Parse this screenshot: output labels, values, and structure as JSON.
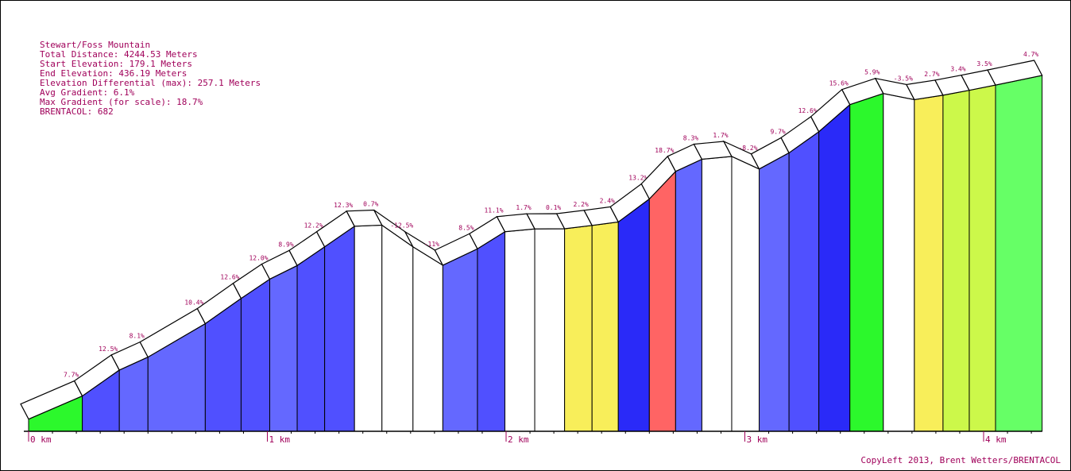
{
  "info": {
    "title": "Stewart/Foss Mountain",
    "total_distance": "Total Distance: 4244.53 Meters",
    "start_elevation": "Start Elevation: 179.1 Meters",
    "end_elevation": "End Elevation: 436.19 Meters",
    "elevation_differential": "Elevation Differential (max): 257.1 Meters",
    "avg_gradient": "Avg Gradient: 6.1%",
    "max_gradient": "Max Gradient (for scale): 18.7%",
    "brentacol": "BRENTACOL: 682"
  },
  "copyleft": "CopyLeft 2013, Brent Wetters/BRENTACOL",
  "chart_data": {
    "type": "area",
    "title": "Stewart/Foss Mountain",
    "xlabel": "",
    "ylabel": "",
    "x_unit": "km",
    "xlim": [
      0,
      4.245
    ],
    "ylim": [
      170,
      445
    ],
    "grid": false,
    "x_ticks": [
      "0 km",
      "1 km",
      "2 km",
      "3 km",
      "4 km"
    ],
    "legend": "none",
    "gradient_colors": {
      "descent_or_flat": "#ffffff",
      "0-2%": "#ffffff",
      "2-5%": "#f8ee5a",
      "3-5%": "#ccf84a",
      "5-8%": "#66ff66",
      "6-8%": "#2cf82c",
      "8-11%": "#6468ff",
      "11-13%": "#5050ff",
      "13-16%": "#2a2af8",
      "16%+": "#ff6464"
    },
    "segments": [
      {
        "start_km": 0.0,
        "end_km": 0.225,
        "gradient": "7.7%",
        "color": "#2cf82c",
        "start_elev": 179.1,
        "end_elev": 196.4
      },
      {
        "start_km": 0.225,
        "end_km": 0.38,
        "gradient": "12.5%",
        "color": "#5050ff",
        "start_elev": 196.4,
        "end_elev": 215.8
      },
      {
        "start_km": 0.38,
        "end_km": 0.5,
        "gradient": "8.1%",
        "color": "#6468ff",
        "start_elev": 215.8,
        "end_elev": 225.5
      },
      {
        "start_km": 0.5,
        "end_km": 0.74,
        "gradient": "10.4%",
        "color": "#6468ff",
        "start_elev": 225.5,
        "end_elev": 250.5
      },
      {
        "start_km": 0.74,
        "end_km": 0.89,
        "gradient": "12.6%",
        "color": "#5050ff",
        "start_elev": 250.5,
        "end_elev": 269.4
      },
      {
        "start_km": 0.89,
        "end_km": 1.01,
        "gradient": "12.0%",
        "color": "#5050ff",
        "start_elev": 269.4,
        "end_elev": 283.8
      },
      {
        "start_km": 1.01,
        "end_km": 1.125,
        "gradient": "8.9%",
        "color": "#6468ff",
        "start_elev": 283.8,
        "end_elev": 294.0
      },
      {
        "start_km": 1.125,
        "end_km": 1.24,
        "gradient": "12.2%",
        "color": "#5050ff",
        "start_elev": 294.0,
        "end_elev": 308.0
      },
      {
        "start_km": 1.24,
        "end_km": 1.365,
        "gradient": "12.3%",
        "color": "#5050ff",
        "start_elev": 308.0,
        "end_elev": 323.4
      },
      {
        "start_km": 1.365,
        "end_km": 1.48,
        "gradient": "0.7%",
        "color": "#ffffff",
        "start_elev": 323.4,
        "end_elev": 324.2
      },
      {
        "start_km": 1.48,
        "end_km": 1.61,
        "gradient": "-12.5%",
        "color": "#ffffff",
        "start_elev": 324.2,
        "end_elev": 308.0
      },
      {
        "start_km": 1.61,
        "end_km": 1.735,
        "gradient": "-11%",
        "color": "#ffffff",
        "start_elev": 308.0,
        "end_elev": 294.2
      },
      {
        "start_km": 1.735,
        "end_km": 1.88,
        "gradient": "8.5%",
        "color": "#6468ff",
        "start_elev": 294.2,
        "end_elev": 306.5
      },
      {
        "start_km": 1.88,
        "end_km": 1.995,
        "gradient": "11.1%",
        "color": "#5050ff",
        "start_elev": 306.5,
        "end_elev": 319.3
      },
      {
        "start_km": 1.995,
        "end_km": 2.12,
        "gradient": "1.7%",
        "color": "#ffffff",
        "start_elev": 319.3,
        "end_elev": 321.4
      },
      {
        "start_km": 2.12,
        "end_km": 2.245,
        "gradient": "0.1%",
        "color": "#ffffff",
        "start_elev": 321.4,
        "end_elev": 321.5
      },
      {
        "start_km": 2.245,
        "end_km": 2.36,
        "gradient": "2.2%",
        "color": "#f8ee5a",
        "start_elev": 321.5,
        "end_elev": 324.0
      },
      {
        "start_km": 2.36,
        "end_km": 2.47,
        "gradient": "2.4%",
        "color": "#f8ee5a",
        "start_elev": 324.0,
        "end_elev": 326.6
      },
      {
        "start_km": 2.47,
        "end_km": 2.6,
        "gradient": "13.2%",
        "color": "#2a2af8",
        "start_elev": 326.6,
        "end_elev": 343.8
      },
      {
        "start_km": 2.6,
        "end_km": 2.71,
        "gradient": "18.7%",
        "color": "#ff6464",
        "start_elev": 343.8,
        "end_elev": 364.4
      },
      {
        "start_km": 2.71,
        "end_km": 2.82,
        "gradient": "8.3%",
        "color": "#6468ff",
        "start_elev": 364.4,
        "end_elev": 373.5
      },
      {
        "start_km": 2.82,
        "end_km": 2.945,
        "gradient": "1.7%",
        "color": "#ffffff",
        "start_elev": 373.5,
        "end_elev": 375.6
      },
      {
        "start_km": 2.945,
        "end_km": 3.06,
        "gradient": "-8.2%",
        "color": "#ffffff",
        "start_elev": 375.6,
        "end_elev": 366.2
      },
      {
        "start_km": 3.06,
        "end_km": 3.185,
        "gradient": "9.7%",
        "color": "#6468ff",
        "start_elev": 366.2,
        "end_elev": 378.3
      },
      {
        "start_km": 3.185,
        "end_km": 3.31,
        "gradient": "12.6%",
        "color": "#5050ff",
        "start_elev": 378.3,
        "end_elev": 394.1
      },
      {
        "start_km": 3.31,
        "end_km": 3.44,
        "gradient": "15.6%",
        "color": "#2a2af8",
        "start_elev": 394.1,
        "end_elev": 414.4
      },
      {
        "start_km": 3.44,
        "end_km": 3.58,
        "gradient": "5.9%",
        "color": "#2cf82c",
        "start_elev": 414.4,
        "end_elev": 422.7
      },
      {
        "start_km": 3.58,
        "end_km": 3.71,
        "gradient": "-3.5%",
        "color": "#ffffff",
        "start_elev": 422.7,
        "end_elev": 418.1
      },
      {
        "start_km": 3.71,
        "end_km": 3.83,
        "gradient": "2.7%",
        "color": "#f8ee5a",
        "start_elev": 418.1,
        "end_elev": 421.4
      },
      {
        "start_km": 3.83,
        "end_km": 3.94,
        "gradient": "3.4%",
        "color": "#ccf84a",
        "start_elev": 421.4,
        "end_elev": 425.1
      },
      {
        "start_km": 3.94,
        "end_km": 4.05,
        "gradient": "3.5%",
        "color": "#ccf84a",
        "start_elev": 425.1,
        "end_elev": 429.0
      },
      {
        "start_km": 4.05,
        "end_km": 4.245,
        "gradient": "4.7%",
        "color": "#66ff66",
        "start_elev": 429.0,
        "end_elev": 436.2
      }
    ]
  }
}
